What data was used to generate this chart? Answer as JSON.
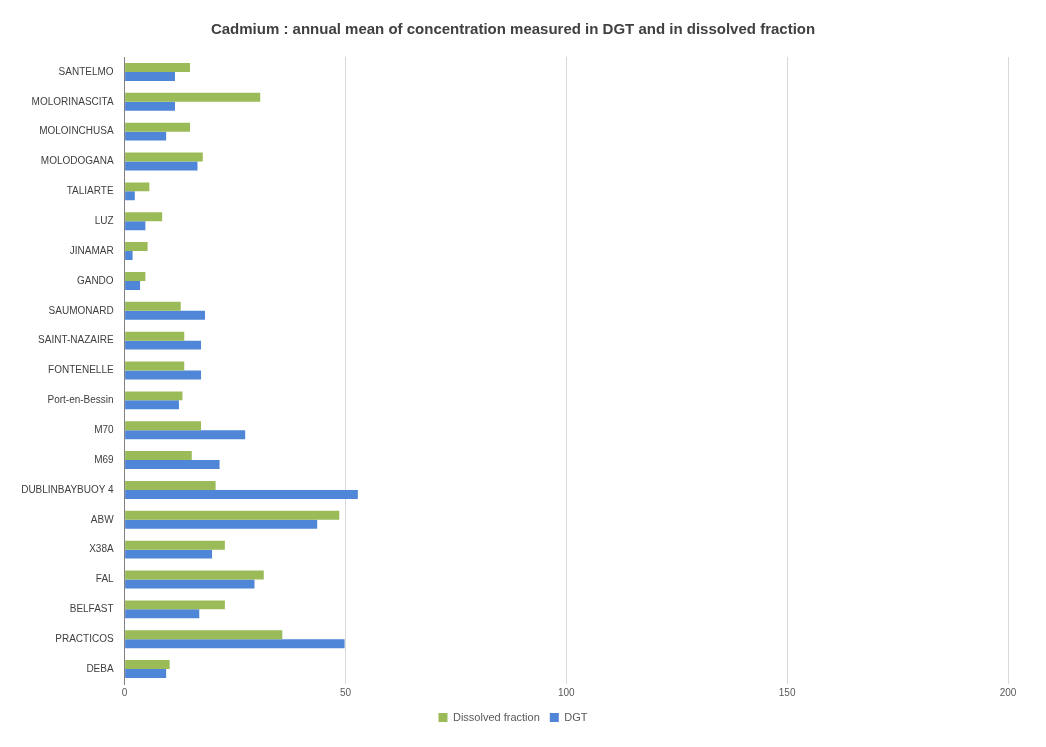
{
  "chart_data": {
    "type": "bar",
    "orientation": "horizontal",
    "title": "Cadmium : annual mean of concentration measured in DGT and in dissolved fraction",
    "categories": [
      "SANTELMO",
      "MOLORINASCITA",
      "MOLOINCHUSA",
      "MOLODOGANA",
      "TALIARTE",
      "LUZ",
      "JINAMAR",
      "GANDO",
      "SAUMONARD",
      "SAINT-NAZAIRE",
      "FONTENELLE",
      "Port-en-Bessin",
      "M70",
      "M69",
      "DUBLINBAYBUOY 4",
      "ABW",
      "X38A",
      "FAL",
      "BELFAST",
      "PRACTICOS",
      "DEBA"
    ],
    "series": [
      {
        "name": "Dissolved fraction",
        "color": "#9bbb59",
        "values": [
          14.8,
          30.7,
          14.8,
          17.7,
          5.6,
          8.5,
          5.2,
          4.7,
          12.7,
          13.5,
          13.5,
          13.1,
          17.3,
          15.2,
          20.6,
          48.6,
          22.7,
          31.5,
          22.7,
          35.7,
          10.2
        ]
      },
      {
        "name": "DGT",
        "color": "#4f86d8",
        "values": [
          11.4,
          11.4,
          9.4,
          16.5,
          2.3,
          4.7,
          1.8,
          3.5,
          18.2,
          17.3,
          17.3,
          12.3,
          27.3,
          21.5,
          52.8,
          43.6,
          19.8,
          29.4,
          16.9,
          49.8,
          9.4
        ]
      }
    ],
    "xlim": [
      0,
      200
    ],
    "xticks": [
      0,
      50,
      100,
      150,
      200
    ],
    "grid": "x",
    "legend": "bottom"
  }
}
